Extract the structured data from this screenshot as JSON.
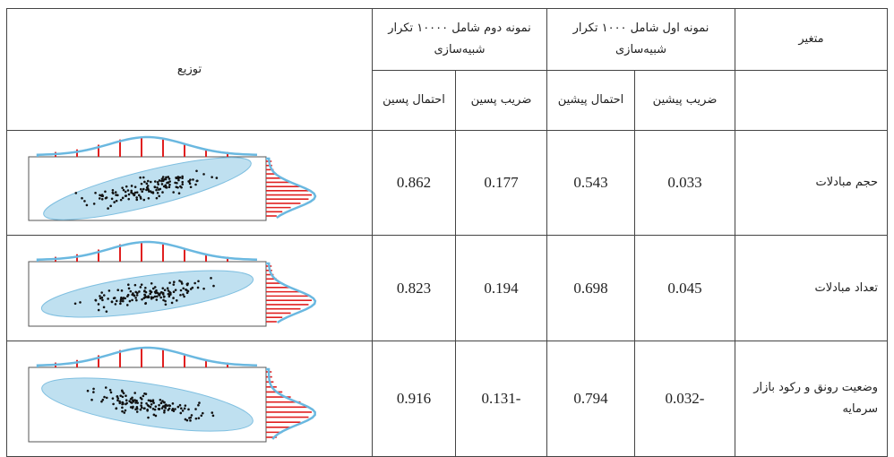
{
  "table": {
    "header": {
      "variable": "متغیر",
      "sample1": "نمونه اول شامل ۱۰۰۰ تکرار شبیه‌سازی",
      "sample2": "نمونه دوم شامل ۱۰۰۰۰ تکرار شبیه‌سازی",
      "distribution": "توزیع",
      "subheaders": [
        "ضریب پیشین",
        "احتمال پیشین",
        "ضریب پسین",
        "احتمال پسین"
      ]
    },
    "rows": [
      [
        "حجم مبادلات",
        "0.033",
        "0.543",
        "0.177",
        "0.862"
      ],
      [
        "تعداد مبادلات",
        "0.045",
        "0.698",
        "0.194",
        "0.823"
      ],
      [
        "وضعیت رونق و رکود بازار سرمایه",
        "-0.032",
        "0.794",
        "-0.131",
        "0.916"
      ]
    ]
  }
}
